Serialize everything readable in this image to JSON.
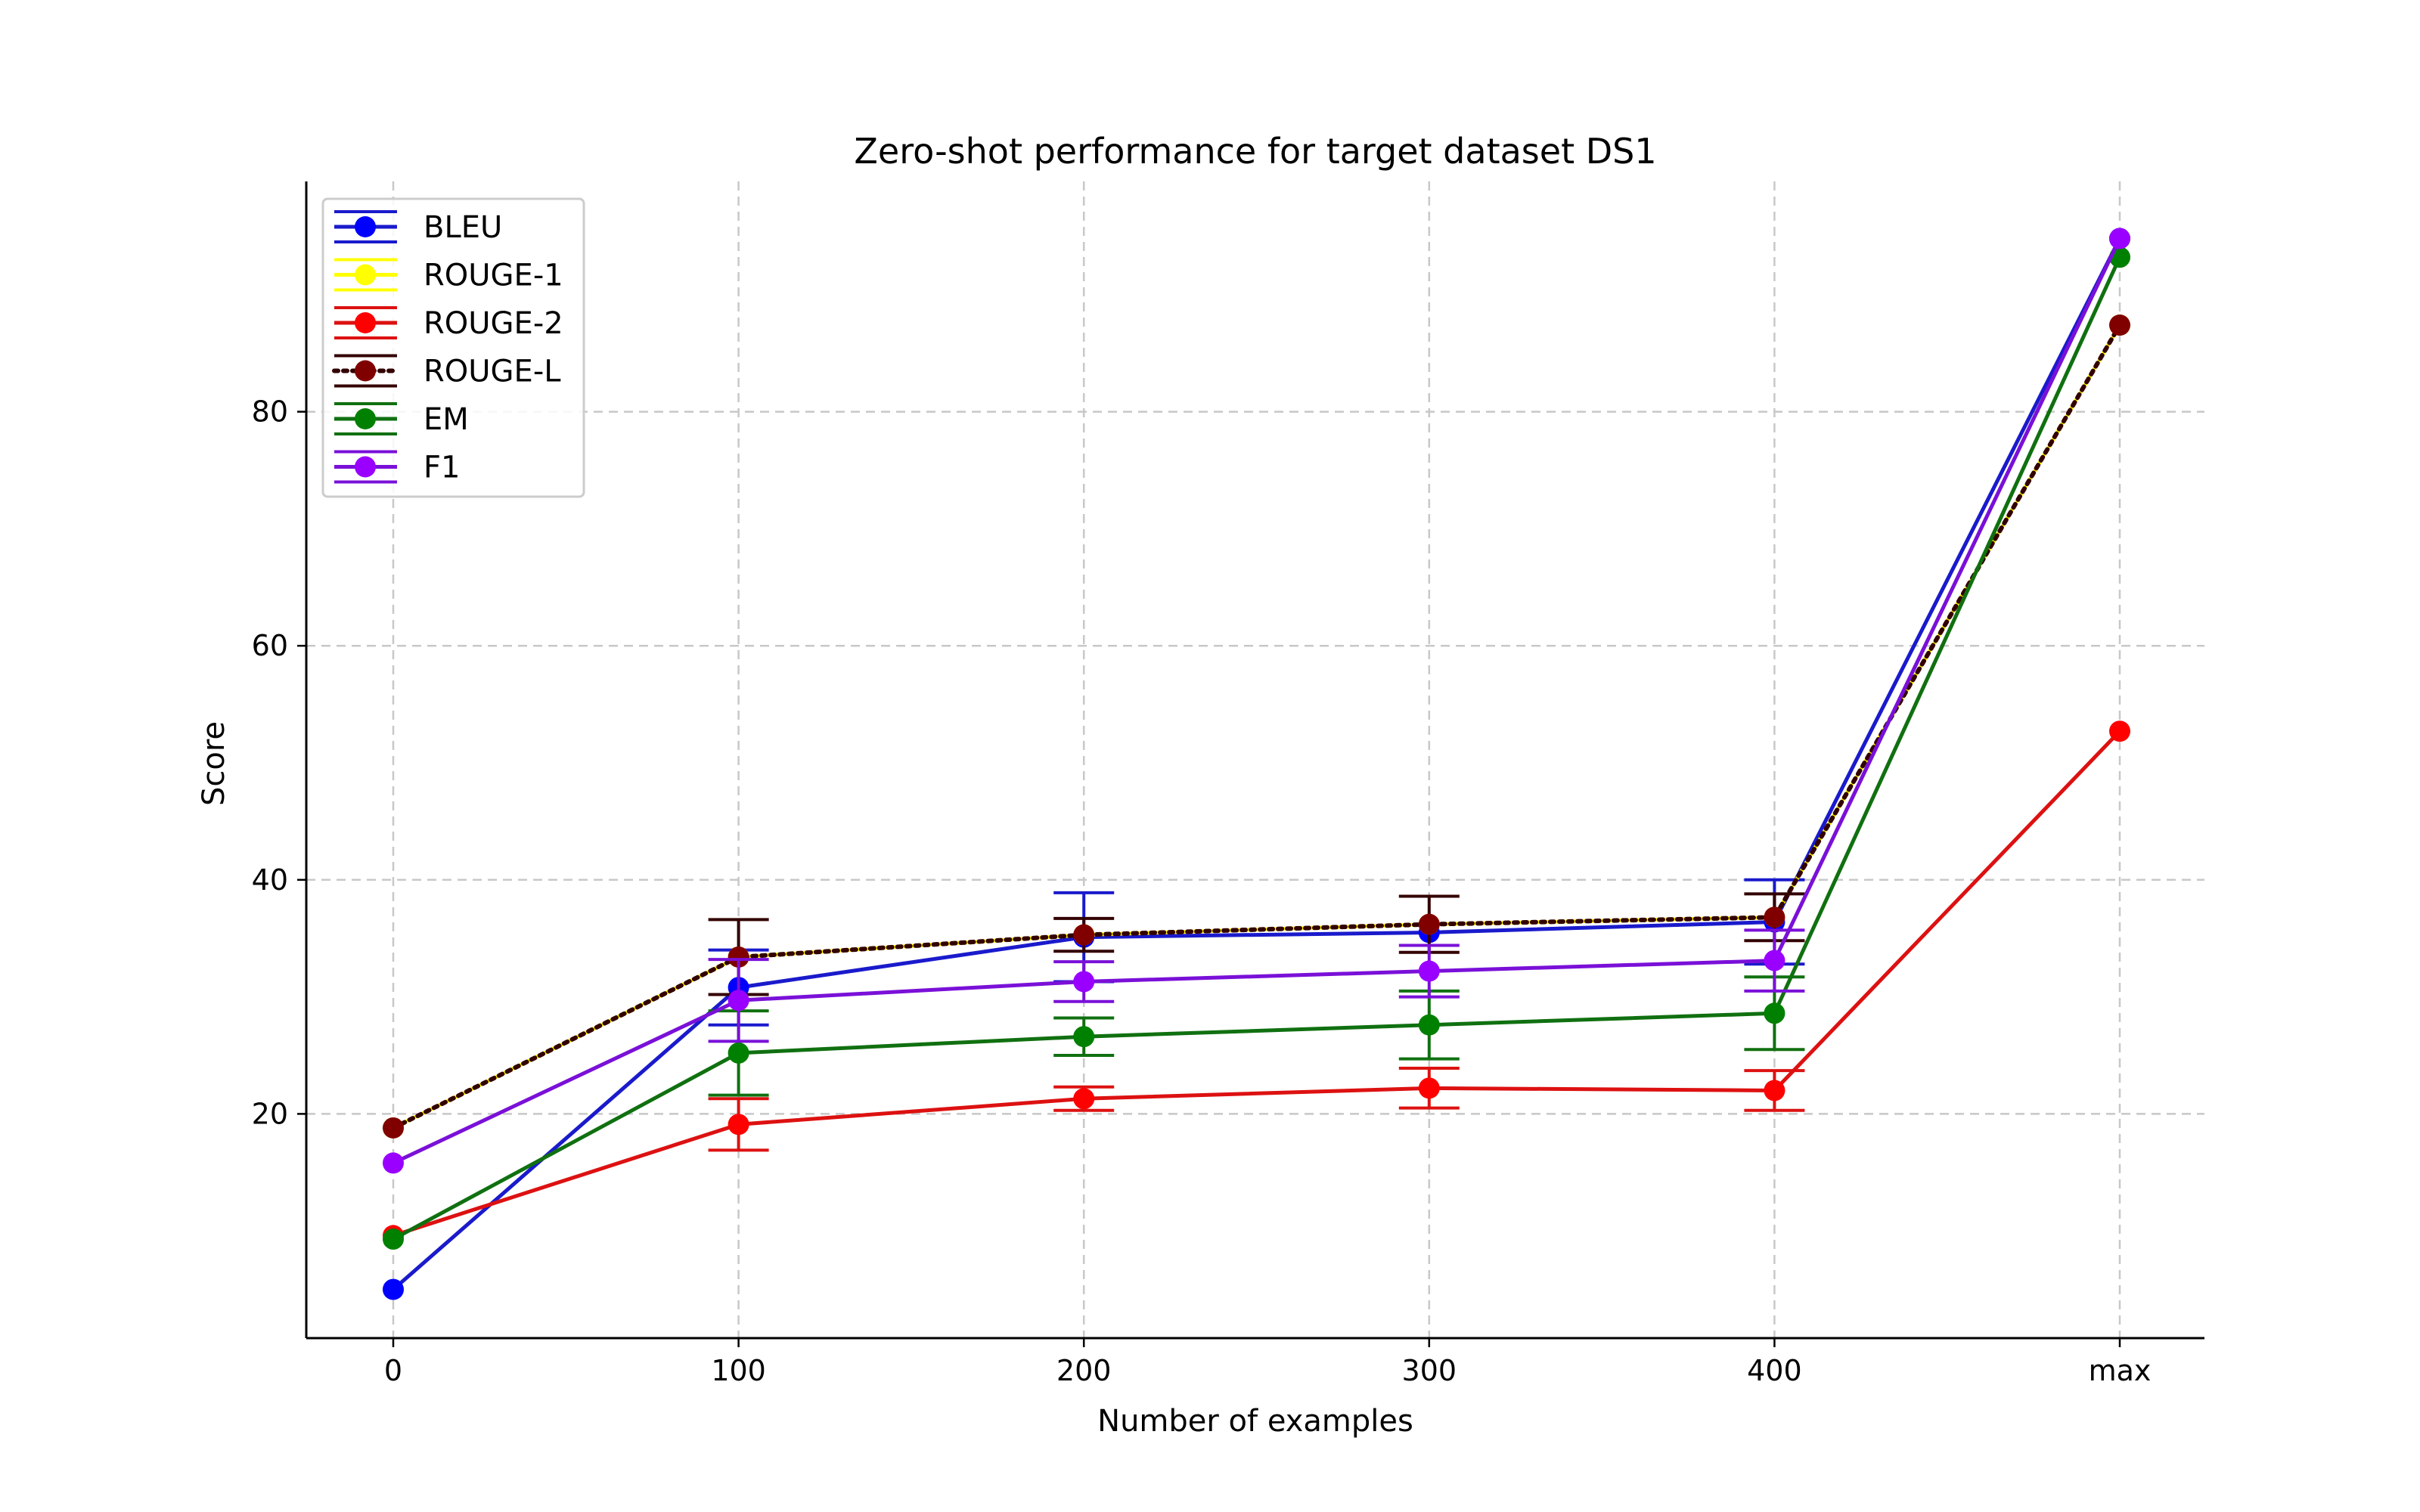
{
  "chart_data": {
    "type": "line",
    "title": "Zero-shot performance for target dataset DS1",
    "xlabel": "Number of examples",
    "ylabel": "Score",
    "categories": [
      "0",
      "100",
      "200",
      "300",
      "400",
      "max"
    ],
    "ylim": [
      0,
      100
    ],
    "yticks": [
      20,
      40,
      60,
      80
    ],
    "grid": true,
    "grid_style": "dashed",
    "legend_position": "upper-left",
    "series": [
      {
        "name": "BLEU",
        "color": "#0000ff",
        "line_color": "#1a1acc",
        "style": "solid",
        "values": [
          5.0,
          30.8,
          35.1,
          35.5,
          36.4,
          94.8
        ],
        "errors": [
          null,
          3.2,
          3.8,
          null,
          3.6,
          null
        ]
      },
      {
        "name": "ROUGE-1",
        "color": "#ffff00",
        "line_color": "#ffff00",
        "style": "solid",
        "values": [
          18.8,
          33.4,
          35.3,
          36.2,
          36.8,
          87.4
        ],
        "errors": [
          null,
          null,
          null,
          null,
          null,
          null
        ]
      },
      {
        "name": "ROUGE-2",
        "color": "#ff0000",
        "line_color": "#dd1111",
        "style": "solid",
        "values": [
          9.6,
          19.1,
          21.3,
          22.2,
          22.0,
          52.7
        ],
        "errors": [
          null,
          2.2,
          1.0,
          1.7,
          1.7,
          null
        ]
      },
      {
        "name": "ROUGE-L",
        "color": "#800000",
        "line_color": "#330000",
        "style": "dotted",
        "values": [
          18.8,
          33.4,
          35.3,
          36.2,
          36.8,
          87.4
        ],
        "errors": [
          null,
          3.2,
          1.4,
          2.4,
          2.0,
          null
        ]
      },
      {
        "name": "EM",
        "color": "#008000",
        "line_color": "#107010",
        "style": "solid",
        "values": [
          9.3,
          25.2,
          26.6,
          27.6,
          28.6,
          93.2
        ],
        "errors": [
          null,
          3.6,
          1.6,
          2.9,
          3.1,
          null
        ]
      },
      {
        "name": "F1",
        "color": "#9900ff",
        "line_color": "#7a10d8",
        "style": "solid",
        "values": [
          15.8,
          29.7,
          31.3,
          32.2,
          33.1,
          94.8
        ],
        "errors": [
          null,
          3.5,
          1.7,
          2.2,
          2.6,
          null
        ]
      }
    ]
  }
}
